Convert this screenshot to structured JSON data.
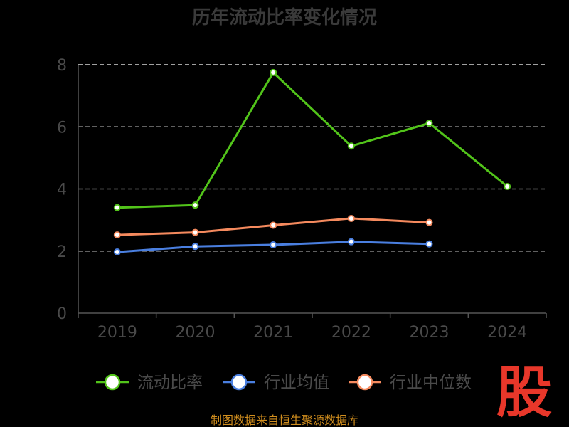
{
  "chart_data": {
    "type": "line",
    "title": "历年流动比率变化情况",
    "categories": [
      "2019",
      "2020",
      "2021",
      "2022",
      "2023",
      "2024"
    ],
    "ylim": [
      0,
      8
    ],
    "yticks": [
      "0",
      "2",
      "4",
      "6",
      "8"
    ],
    "grid": true,
    "legend_position": "bottom",
    "series": [
      {
        "name": "流动比率",
        "color": "#52c41a",
        "values": [
          3.4,
          3.48,
          7.75,
          5.38,
          6.12,
          4.08
        ]
      },
      {
        "name": "行业均值",
        "color": "#4a7fe0",
        "values": [
          1.97,
          2.15,
          2.2,
          2.3,
          2.23,
          null
        ]
      },
      {
        "name": "行业中位数",
        "color": "#f58a5e",
        "values": [
          2.52,
          2.6,
          2.83,
          3.05,
          2.92,
          null
        ]
      }
    ]
  },
  "source": "制图数据来自恒生聚源数据库",
  "logo_text": "股",
  "colors": {
    "background": "#000000",
    "axis": "#555555",
    "grid": "#ffffff",
    "text": "#4a4a4a",
    "source": "#d18e1e",
    "logo": "#e8372a"
  }
}
